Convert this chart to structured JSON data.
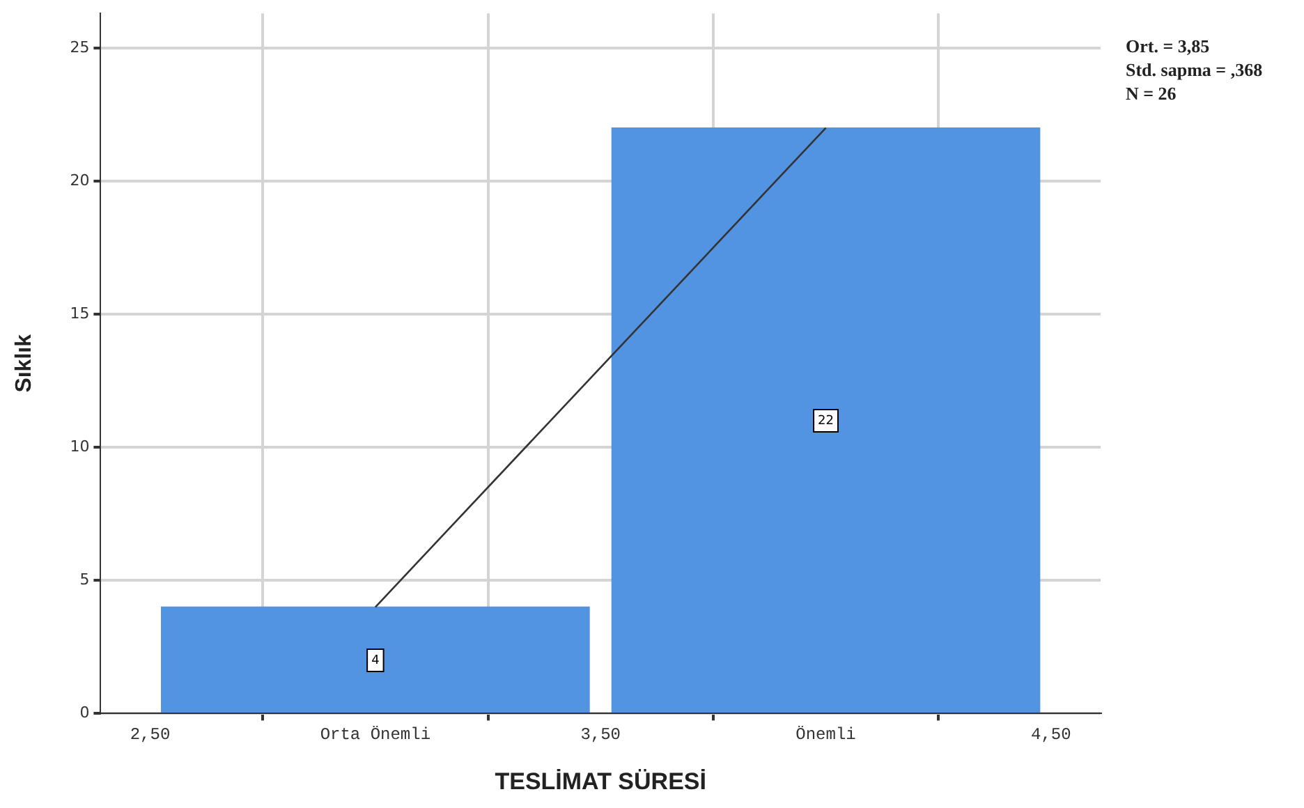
{
  "chart_data": {
    "type": "histogram",
    "xlabel": "TESLİMAT SÜRESİ",
    "ylabel": "Sıklık",
    "bins": [
      2.5,
      3.5,
      4.5
    ],
    "values": [
      4,
      22
    ],
    "color": "#5294e2",
    "series": [
      {
        "type": "line",
        "x": [
          3,
          4
        ],
        "values": [
          4,
          22
        ],
        "color": "#333333"
      }
    ],
    "xlim": [
      2.39,
      4.61
    ],
    "xticks": [
      {
        "value": 2.5,
        "label": "2,50"
      },
      {
        "value": 3,
        "label": "Orta Önemli"
      },
      {
        "value": 3.5,
        "label": "3,50"
      },
      {
        "value": 4,
        "label": "Önemli"
      },
      {
        "value": 4.5,
        "label": "4,50"
      }
    ],
    "ylim": [
      0,
      26.3
    ],
    "yticks": [
      0,
      5,
      10,
      15,
      20,
      25
    ],
    "grid": true,
    "legend": false,
    "value_labels": [
      "4",
      "22"
    ],
    "annotations": [
      "Ort. = 3,85",
      "Std. sapma = ,368",
      "N = 26"
    ]
  }
}
